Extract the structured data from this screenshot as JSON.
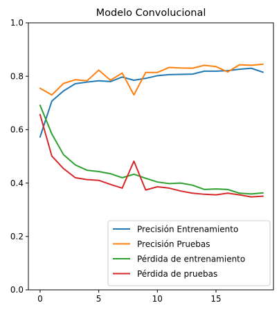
{
  "chart_data": {
    "type": "line",
    "title": "Modelo Convolucional",
    "xlabel": "",
    "ylabel": "",
    "xlim": [
      -1,
      19.9
    ],
    "ylim": [
      0,
      1
    ],
    "xticks": [
      0,
      5,
      10,
      15
    ],
    "yticks": [
      0.0,
      0.2,
      0.4,
      0.6,
      0.8,
      1.0
    ],
    "xtick_labels": [
      "0",
      "5",
      "10",
      "15"
    ],
    "ytick_labels": [
      "0.0",
      "0.2",
      "0.4",
      "0.6",
      "0.8",
      "1.0"
    ],
    "grid": false,
    "legend_position": "lower-right",
    "x": [
      0,
      1,
      2,
      3,
      4,
      5,
      6,
      7,
      8,
      9,
      10,
      11,
      12,
      13,
      14,
      15,
      16,
      17,
      18,
      19
    ],
    "series": [
      {
        "name": "Precisión Entrenamiento",
        "color": "#1f77b4",
        "values": [
          0.573,
          0.707,
          0.745,
          0.772,
          0.778,
          0.783,
          0.78,
          0.797,
          0.785,
          0.792,
          0.802,
          0.806,
          0.807,
          0.808,
          0.819,
          0.819,
          0.821,
          0.826,
          0.83,
          0.815
        ]
      },
      {
        "name": "Precisión Pruebas",
        "color": "#ff7f0e",
        "values": [
          0.755,
          0.73,
          0.773,
          0.787,
          0.783,
          0.823,
          0.785,
          0.812,
          0.73,
          0.814,
          0.814,
          0.833,
          0.831,
          0.83,
          0.841,
          0.836,
          0.816,
          0.843,
          0.841,
          0.845
        ]
      },
      {
        "name": "Pérdida de entrenamiento",
        "color": "#2ca02c",
        "values": [
          0.691,
          0.584,
          0.506,
          0.468,
          0.448,
          0.443,
          0.435,
          0.42,
          0.433,
          0.418,
          0.404,
          0.398,
          0.4,
          0.392,
          0.376,
          0.378,
          0.376,
          0.362,
          0.359,
          0.363
        ]
      },
      {
        "name": "Pérdida de pruebas",
        "color": "#d62728",
        "values": [
          0.656,
          0.501,
          0.454,
          0.42,
          0.413,
          0.41,
          0.395,
          0.381,
          0.482,
          0.374,
          0.386,
          0.381,
          0.37,
          0.362,
          0.358,
          0.356,
          0.362,
          0.356,
          0.348,
          0.351
        ]
      }
    ]
  }
}
